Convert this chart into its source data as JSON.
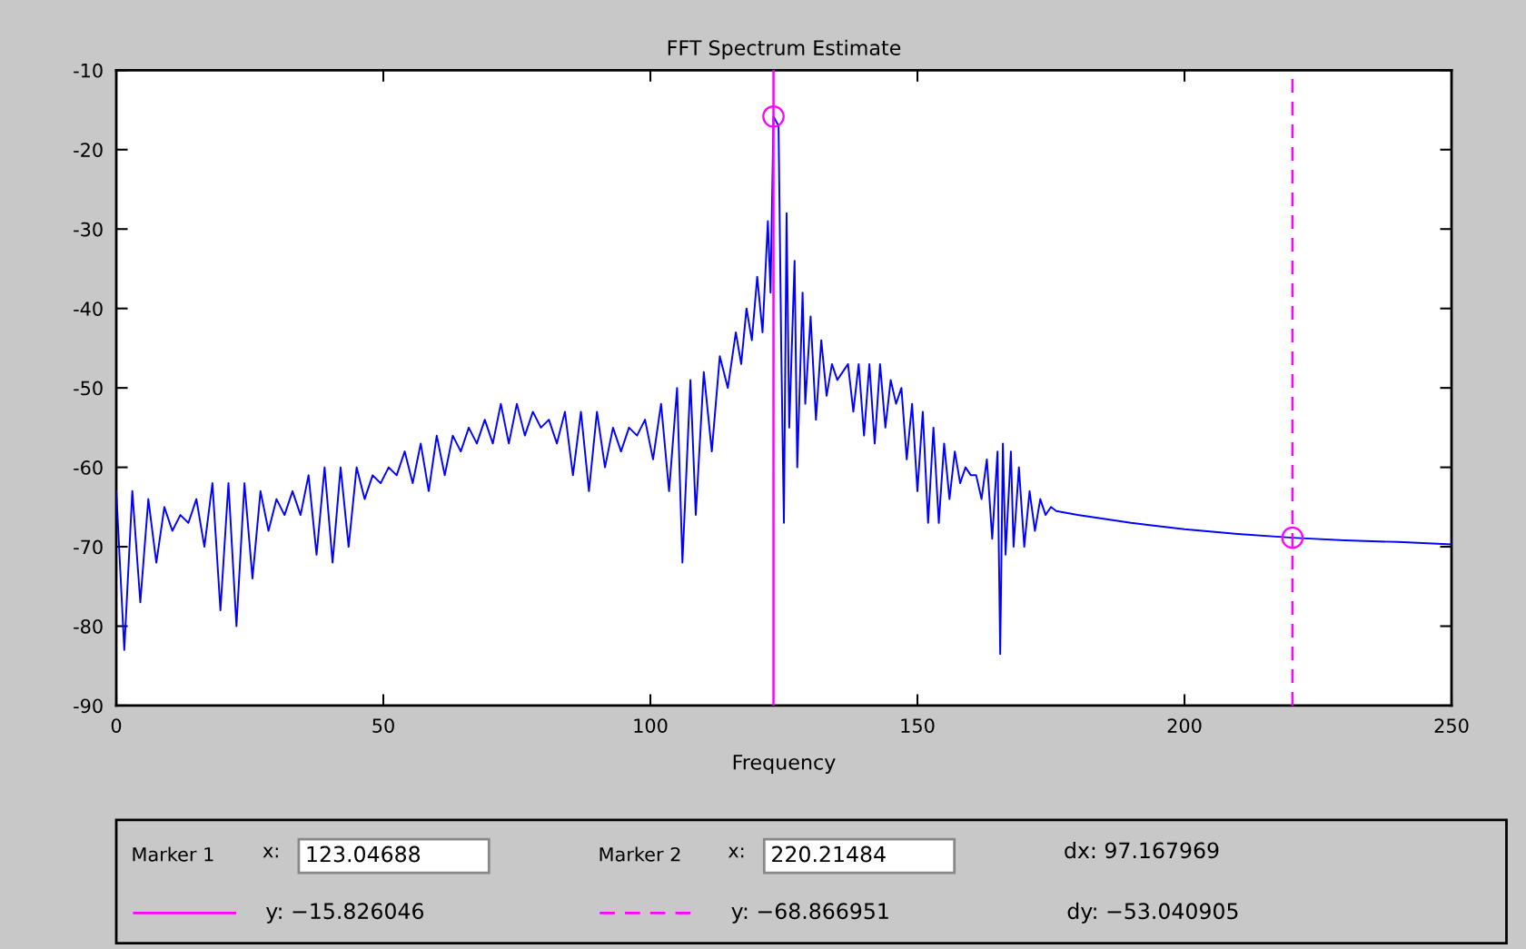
{
  "chart_data": {
    "type": "line",
    "title": "FFT Spectrum Estimate",
    "xlabel": "Frequency",
    "xlim": [
      0,
      250
    ],
    "xticks": [
      0,
      50,
      100,
      150,
      200,
      250
    ],
    "ylim": [
      -90,
      -10
    ],
    "yticks": [
      -90,
      -80,
      -70,
      -60,
      -50,
      -40,
      -30,
      -20,
      -10
    ],
    "grid": false,
    "series": [
      {
        "color": "#0000ff",
        "marker": "none",
        "x": [
          0,
          1.5,
          3,
          4.5,
          6,
          7.5,
          9,
          10.5,
          12,
          13.5,
          15,
          16.5,
          18,
          19.5,
          21,
          22.5,
          24,
          25.5,
          27,
          28.5,
          30,
          31.5,
          33,
          34.5,
          36,
          37.5,
          39,
          40.5,
          42,
          43.5,
          45,
          46.5,
          48,
          49.5,
          51,
          52.5,
          54,
          55.5,
          57,
          58.5,
          60,
          61.5,
          63,
          64.5,
          66,
          67.5,
          69,
          70.5,
          72,
          73.5,
          75,
          76.5,
          78,
          79.5,
          81,
          82.5,
          84,
          85.5,
          87,
          88.5,
          90,
          91.5,
          93,
          94.5,
          96,
          97.5,
          99,
          100.5,
          102,
          103.5,
          105,
          106,
          107.5,
          108.5,
          110,
          111.5,
          113,
          114.5,
          116,
          117,
          118,
          119,
          120,
          121,
          122,
          122.5,
          123.04688,
          124,
          124.5,
          125,
          125.5,
          126,
          127,
          127.5,
          128.5,
          129,
          130,
          131,
          132,
          133,
          134,
          135,
          136,
          137,
          138,
          139,
          140,
          141,
          142,
          143,
          144,
          145,
          146,
          147,
          148,
          149,
          150,
          151,
          152,
          153,
          154,
          155,
          156,
          157,
          158,
          159,
          160,
          161,
          162,
          163,
          164,
          165,
          165.5,
          166,
          166.5,
          167.5,
          168,
          169,
          170,
          171,
          172,
          173,
          174,
          175,
          176,
          180,
          190,
          200,
          210,
          220.21484,
          230,
          240,
          250
        ],
        "values": [
          -63,
          -83,
          -63,
          -77,
          -64,
          -72,
          -65,
          -68,
          -66,
          -67,
          -64,
          -70,
          -62,
          -78,
          -62,
          -80,
          -62,
          -74,
          -63,
          -68,
          -64,
          -66,
          -63,
          -66,
          -61,
          -71,
          -60,
          -72,
          -60,
          -70,
          -60,
          -64,
          -61,
          -62,
          -60,
          -61,
          -58,
          -62,
          -57,
          -63,
          -56,
          -61,
          -56,
          -58,
          -55,
          -57,
          -54,
          -57,
          -52,
          -57,
          -52,
          -56,
          -53,
          -55,
          -54,
          -57,
          -53,
          -61,
          -53,
          -63,
          -53,
          -60,
          -55,
          -58,
          -55,
          -56,
          -54,
          -59,
          -52,
          -63,
          -50,
          -72,
          -49,
          -66,
          -48,
          -58,
          -46,
          -50,
          -43,
          -47,
          -40,
          -44,
          -36,
          -43,
          -29,
          -38,
          -15.826046,
          -17,
          -45,
          -67,
          -28,
          -55,
          -34,
          -60,
          -38,
          -52,
          -41,
          -54,
          -44,
          -51,
          -47,
          -49,
          -48,
          -47,
          -53,
          -47,
          -56,
          -47,
          -57,
          -47,
          -55,
          -49,
          -52,
          -50,
          -59,
          -52,
          -63,
          -53,
          -67,
          -55,
          -67,
          -57,
          -64,
          -58,
          -62,
          -60,
          -61,
          -61,
          -64,
          -59,
          -69,
          -58,
          -83.5,
          -57,
          -71,
          -58,
          -70,
          -60,
          -70,
          -63,
          -68,
          -64,
          -66,
          -65,
          -65.5,
          -66,
          -67,
          -67.8,
          -68.4,
          -68.866951,
          -69.2,
          -69.4,
          -69.7
        ]
      },
      {
        "type": "scatter",
        "color": "#ff00ff",
        "marker": "circle",
        "x": [
          123.04688,
          220.21484
        ],
        "values": [
          -15.826046,
          -68.866951
        ]
      }
    ],
    "ref_lines": [
      {
        "axis": "x",
        "value": 123.04688,
        "color": "#ff00ff",
        "line_style": "solid"
      },
      {
        "axis": "x",
        "value": 220.21484,
        "color": "#ff00ff",
        "line_style": "dashed"
      }
    ],
    "annotations": [
      "Marker 1",
      "x:",
      "123.04688",
      "y: −15.826046",
      "Marker 2",
      "x:",
      "220.21484",
      "y: −68.866951",
      "dx: 97.167969",
      "dy: −53.040905"
    ]
  }
}
